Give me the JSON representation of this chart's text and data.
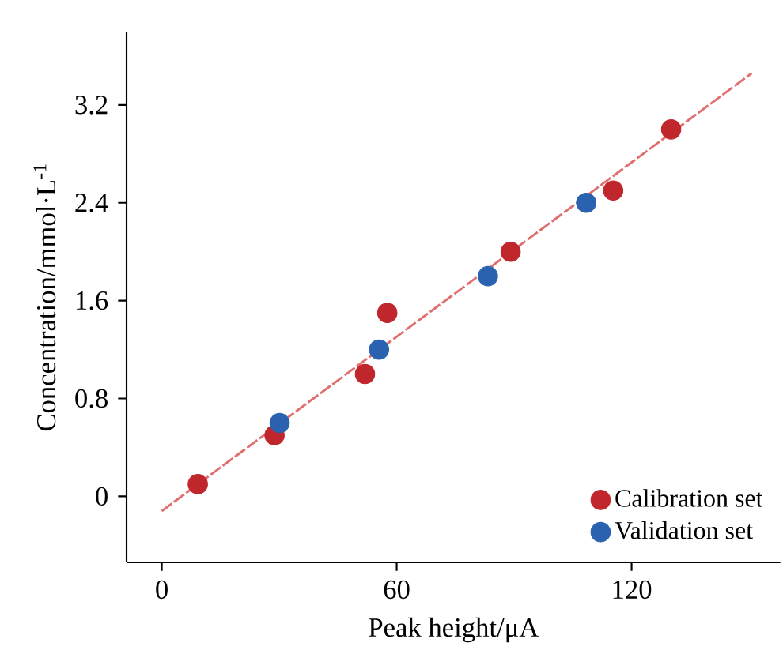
{
  "chart_data": {
    "type": "scatter",
    "xlabel": "Peak height/μA",
    "ylabel": "Concentration/mmol·L$^{-1}$",
    "xlim": [
      -9,
      158
    ],
    "ylim": [
      -0.54,
      3.8
    ],
    "xticks": [
      0,
      60,
      120
    ],
    "yticks": [
      0,
      0.8,
      1.6,
      2.4,
      3.2
    ],
    "legend": "bottom right",
    "grid": false,
    "series": [
      {
        "name": "Calibration set",
        "color": "#c0272d",
        "marker": "circle",
        "x": [
          9.2,
          28.8,
          51.9,
          57.6,
          89.1,
          115.3,
          130.1
        ],
        "values": [
          0.1,
          0.5,
          1.0,
          1.5,
          2.0,
          2.5,
          3.0
        ]
      },
      {
        "name": "Validation set",
        "color": "#2b62b0",
        "marker": "circle",
        "x": [
          30.1,
          55.5,
          83.3,
          108.4
        ],
        "values": [
          0.6,
          1.2,
          1.8,
          2.4
        ]
      },
      {
        "color": "#e07070",
        "type": "line",
        "marker": "none",
        "line_style": "dashed",
        "x": [
          0,
          150.7
        ],
        "values": [
          -0.12,
          3.46
        ]
      }
    ]
  }
}
